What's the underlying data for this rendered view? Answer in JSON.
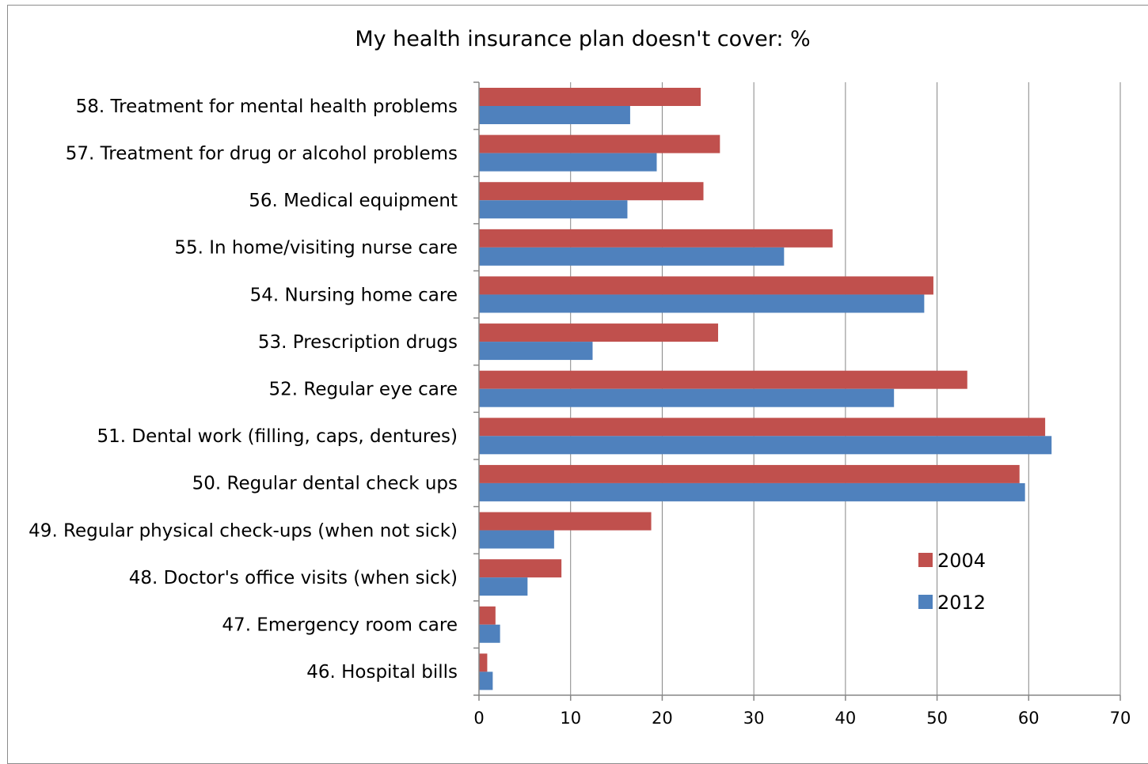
{
  "chart_data": {
    "type": "bar",
    "orientation": "horizontal",
    "title": "My health insurance plan doesn't cover: %",
    "xlabel": "",
    "ylabel": "",
    "xlim": [
      0,
      70
    ],
    "xticks": [
      0,
      10,
      20,
      30,
      40,
      50,
      60,
      70
    ],
    "grid": "vertical",
    "legend_position": "right",
    "categories": [
      "58. Treatment for mental health problems",
      "57. Treatment for drug or alcohol problems",
      "56. Medical equipment",
      "55. In home/visiting nurse care",
      "54. Nursing home care",
      "53. Prescription drugs",
      "52. Regular eye care",
      "51. Dental work (filling, caps, dentures)",
      "50. Regular dental check ups",
      "49. Regular physical check-ups (when not sick)",
      "48. Doctor's office visits (when sick)",
      "47. Emergency room care",
      "46. Hospital bills"
    ],
    "series": [
      {
        "name": "2004",
        "color": "#c0504d",
        "values": [
          24.2,
          26.3,
          24.5,
          38.6,
          49.6,
          26.1,
          53.3,
          61.8,
          59.0,
          18.8,
          9.0,
          1.8,
          0.9
        ]
      },
      {
        "name": "2012",
        "color": "#4f81bd",
        "values": [
          16.5,
          19.4,
          16.2,
          33.3,
          48.6,
          12.4,
          45.3,
          62.5,
          59.6,
          8.2,
          5.3,
          2.3,
          1.5
        ]
      }
    ]
  },
  "colors": {
    "gridline": "#868686",
    "axis": "#868686",
    "frame": "#8c8c8c"
  }
}
